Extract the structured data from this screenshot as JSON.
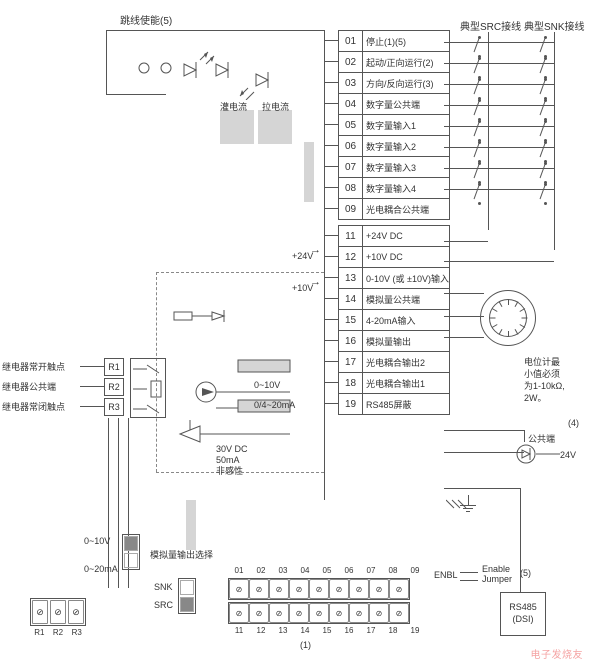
{
  "title_jumper": "跳线使能(5)",
  "header_src": "典型SRC接线",
  "header_snk": "典型SNK接线",
  "flow_source": "灌电流",
  "flow_sink": "拉电流",
  "terminals": [
    {
      "n": "01",
      "d": "停止(1)(5)"
    },
    {
      "n": "02",
      "d": "起动/正向运行(2)"
    },
    {
      "n": "03",
      "d": "方向/反向运行(3)"
    },
    {
      "n": "04",
      "d": "数字量公共端"
    },
    {
      "n": "05",
      "d": "数字量输入1"
    },
    {
      "n": "06",
      "d": "数字量输入2"
    },
    {
      "n": "07",
      "d": "数字量输入3"
    },
    {
      "n": "08",
      "d": "数字量输入4"
    },
    {
      "n": "09",
      "d": "光电耦合公共端"
    },
    {
      "n": "11",
      "d": "+24V DC"
    },
    {
      "n": "12",
      "d": "+10V DC"
    },
    {
      "n": "13",
      "d": "0-10V (或 ±10V)输入"
    },
    {
      "n": "14",
      "d": "模拟量公共端"
    },
    {
      "n": "15",
      "d": "4-20mA输入"
    },
    {
      "n": "16",
      "d": "模拟量输出"
    },
    {
      "n": "17",
      "d": "光电耦合输出2"
    },
    {
      "n": "18",
      "d": "光电耦合输出1"
    },
    {
      "n": "19",
      "d": "RS485屏蔽"
    }
  ],
  "relays": {
    "no": "继电器常开触点",
    "com": "继电器公共端",
    "nc": "继电器常闭触点",
    "r1": "R1",
    "r2": "R2",
    "r3": "R3"
  },
  "voltages": {
    "p24": "+24V",
    "p10": "+10V"
  },
  "analog": {
    "v": "0~10V",
    "ma": "0/4~20mA"
  },
  "opto_out": "30V DC\n50mA\n非感性",
  "dip1": {
    "a": "0~10V",
    "b": "0~20mA",
    "label": "模拟量输出选择"
  },
  "dip2": {
    "a": "SNK",
    "b": "SRC"
  },
  "r_terminal": [
    "R1",
    "R2",
    "R3"
  ],
  "strip_top": [
    "01",
    "02",
    "03",
    "04",
    "05",
    "06",
    "07",
    "08",
    "09"
  ],
  "strip_bot": [
    "11",
    "12",
    "13",
    "14",
    "15",
    "16",
    "17",
    "18",
    "19"
  ],
  "enbl": "ENBL",
  "enable_jumper": "Enable\nJumper",
  "pot_note": "电位计最\n小值必须\n为1-10kΩ,\n2W。",
  "pot_com": "公共端",
  "v24": "24V",
  "rs485": "RS485\n(DSI)",
  "marks": {
    "m1": "(1)",
    "m4": "(4)",
    "m5": "(5)"
  },
  "watermark": "电子发烧友",
  "colors": {
    "line": "#555",
    "gray": "#d5d5d5"
  }
}
